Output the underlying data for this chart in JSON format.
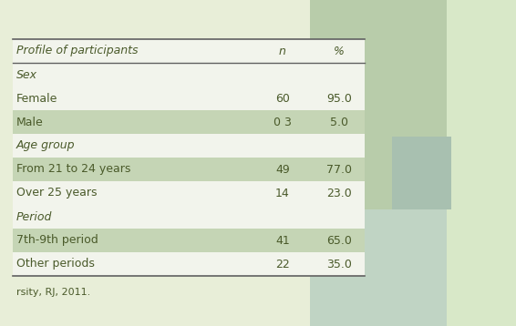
{
  "footnote": "rsity, RJ, 2011.",
  "col_headers": [
    "Profile of participants",
    "n",
    "%"
  ],
  "rows": [
    {
      "label": "Sex",
      "n": "",
      "pct": "",
      "type": "header"
    },
    {
      "label": "Female",
      "n": "60",
      "pct": "95.0",
      "type": "data",
      "shaded": false
    },
    {
      "label": "Male",
      "n": "0 3",
      "pct": "5.0",
      "type": "data",
      "shaded": true
    },
    {
      "label": "Age group",
      "n": "",
      "pct": "",
      "type": "header"
    },
    {
      "label": "From 21 to 24 years",
      "n": "49",
      "pct": "77.0",
      "type": "data",
      "shaded": true
    },
    {
      "label": "Over 25 years",
      "n": "14",
      "pct": "23.0",
      "type": "data",
      "shaded": false
    },
    {
      "label": "Period",
      "n": "",
      "pct": "",
      "type": "header"
    },
    {
      "label": "7th-9th period",
      "n": "41",
      "pct": "65.0",
      "type": "data",
      "shaded": true
    },
    {
      "label": "Other periods",
      "n": "22",
      "pct": "35.0",
      "type": "data",
      "shaded": false
    }
  ],
  "bg_color": "#e8eed8",
  "table_bg_light": "#f2f4ec",
  "table_bg_shaded": "#c5d5b5",
  "section_header_bg": "#f2f4ec",
  "line_color": "#606060",
  "text_color": "#4a5a2a",
  "font_size": 9,
  "col_header_fontsize": 9,
  "footnote_fontsize": 8,
  "panel_green_dark": "#b8ccaa",
  "panel_green_mid": "#c8d8b8",
  "panel_green_light": "#d8e8c8",
  "panel_teal": "#a8c0b0",
  "panel_teal_light": "#c0d4c4"
}
